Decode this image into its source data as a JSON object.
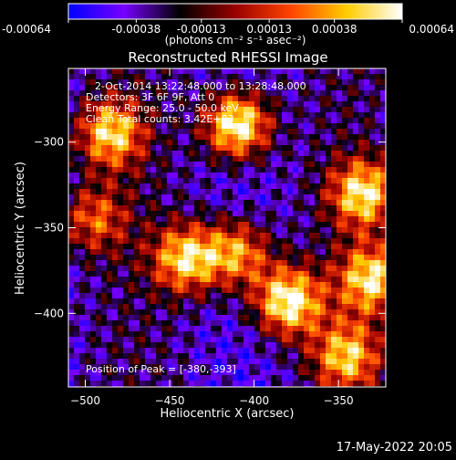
{
  "chart_data": {
    "type": "heatmap",
    "title": "Reconstructed RHESSI Image",
    "xlabel": "Heliocentric X (arcsec)",
    "ylabel": "Heliocentric Y (arcsec)",
    "xlim": [
      -510,
      -322
    ],
    "ylim": [
      -443,
      -257
    ],
    "x_ticks": [
      -500,
      -450,
      -400,
      -350
    ],
    "y_ticks": [
      -300,
      -350,
      -400
    ],
    "colorbar": {
      "ticks": [
        "-0.00064",
        "-0.00038",
        "-0.00013",
        "0.00013",
        "0.00038",
        "0.00064"
      ],
      "min": -0.00064,
      "max": 0.00064,
      "units_text": "(photons cm⁻² s⁻¹ asec⁻²)",
      "colors": [
        "#0000ff",
        "#7700ff",
        "#000000",
        "#990000",
        "#ff4400",
        "#ffcc00",
        "#ffffff"
      ]
    },
    "annotations": {
      "time": "2-Oct-2014 13:22:48.000 to 13:28:48.000",
      "detectors": "Detectors: 3F 6F 9F, Att 0",
      "energy": "Energy Range: 25.0 - 50.0 keV",
      "clean": "Clean    Total counts: 3.42E+03",
      "peak": "Position of Peak = [-380,-393]"
    },
    "sources": [
      {
        "x": -410,
        "y": -290,
        "peak": 1.0
      },
      {
        "x": -485,
        "y": -295,
        "peak": 0.75
      },
      {
        "x": -440,
        "y": -368,
        "peak": 0.8
      },
      {
        "x": -410,
        "y": -365,
        "peak": 0.7
      },
      {
        "x": -380,
        "y": -393,
        "peak": 0.95
      },
      {
        "x": -335,
        "y": -330,
        "peak": 0.8
      },
      {
        "x": -330,
        "y": -380,
        "peak": 0.8
      },
      {
        "x": -345,
        "y": -425,
        "peak": 0.7
      },
      {
        "x": -495,
        "y": -345,
        "peak": 0.5
      }
    ]
  },
  "timestamp": "17-May-2022 20:05"
}
